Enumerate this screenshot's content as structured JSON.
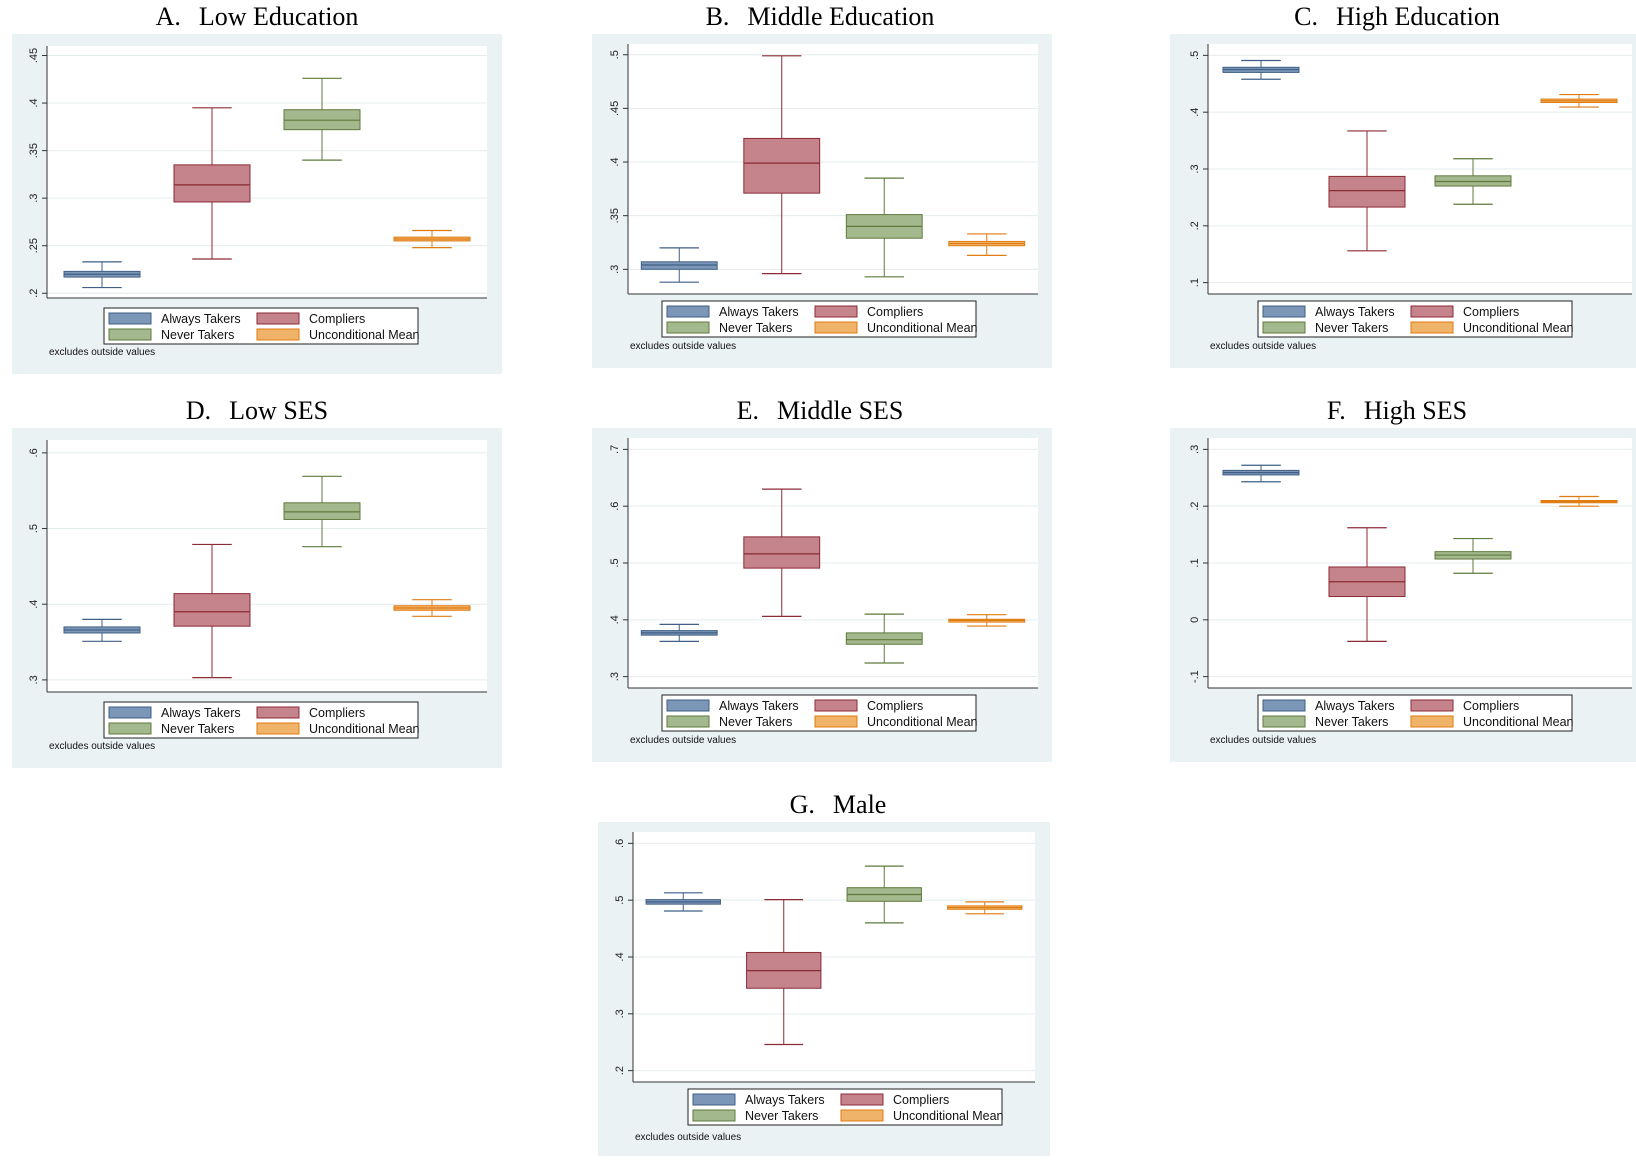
{
  "legend": {
    "items": [
      {
        "label": "Always Takers",
        "color": "#7b96b6",
        "stroke": "#3f5f86"
      },
      {
        "label": "Compliers",
        "color": "#c5838c",
        "stroke": "#8c2a35"
      },
      {
        "label": "Never Takers",
        "color": "#a3b88c",
        "stroke": "#5f7a3c"
      },
      {
        "label": "Unconditional Mean",
        "color": "#f0b36a",
        "stroke": "#e07b10"
      }
    ]
  },
  "note": "excludes outside values",
  "colors": {
    "panel_bg": "#eaf2f3",
    "plot_bg": "#ffffff",
    "grid": "#e4ecec"
  },
  "chart_data": [
    {
      "type": "box",
      "letter": "A.",
      "title": "Low Education",
      "ylim": [
        0.195,
        0.46
      ],
      "yticks": [
        0.2,
        0.25,
        0.3,
        0.35,
        0.4,
        0.45
      ],
      "yticklabels": [
        ".2",
        ".25",
        ".3",
        ".35",
        ".4",
        ".45"
      ],
      "categories": [
        "Always Takers",
        "Compliers",
        "Never Takers",
        "Unconditional Mean"
      ],
      "boxes": [
        {
          "whisker_low": 0.206,
          "q1": 0.217,
          "median": 0.22,
          "q3": 0.223,
          "whisker_high": 0.233
        },
        {
          "whisker_low": 0.236,
          "q1": 0.296,
          "median": 0.314,
          "q3": 0.335,
          "whisker_high": 0.395
        },
        {
          "whisker_low": 0.34,
          "q1": 0.372,
          "median": 0.382,
          "q3": 0.393,
          "whisker_high": 0.426
        },
        {
          "whisker_low": 0.248,
          "q1": 0.255,
          "median": 0.257,
          "q3": 0.259,
          "whisker_high": 0.266
        }
      ]
    },
    {
      "type": "box",
      "letter": "B.",
      "title": "Middle Education",
      "ylim": [
        0.277,
        0.51
      ],
      "yticks": [
        0.3,
        0.35,
        0.4,
        0.45,
        0.5
      ],
      "yticklabels": [
        ".3",
        ".35",
        ".4",
        ".45",
        ".5"
      ],
      "categories": [
        "Always Takers",
        "Compliers",
        "Never Takers",
        "Unconditional Mean"
      ],
      "boxes": [
        {
          "whisker_low": 0.288,
          "q1": 0.3,
          "median": 0.304,
          "q3": 0.307,
          "whisker_high": 0.32
        },
        {
          "whisker_low": 0.296,
          "q1": 0.371,
          "median": 0.399,
          "q3": 0.422,
          "whisker_high": 0.499
        },
        {
          "whisker_low": 0.293,
          "q1": 0.329,
          "median": 0.34,
          "q3": 0.351,
          "whisker_high": 0.385
        },
        {
          "whisker_low": 0.313,
          "q1": 0.322,
          "median": 0.324,
          "q3": 0.326,
          "whisker_high": 0.333
        }
      ]
    },
    {
      "type": "box",
      "letter": "C.",
      "title": "High Education",
      "ylim": [
        0.08,
        0.52
      ],
      "yticks": [
        0.1,
        0.2,
        0.3,
        0.4,
        0.5
      ],
      "yticklabels": [
        ".1",
        ".2",
        ".3",
        ".4",
        ".5"
      ],
      "categories": [
        "Always Takers",
        "Compliers",
        "Never Takers",
        "Unconditional Mean"
      ],
      "boxes": [
        {
          "whisker_low": 0.458,
          "q1": 0.47,
          "median": 0.475,
          "q3": 0.479,
          "whisker_high": 0.491
        },
        {
          "whisker_low": 0.156,
          "q1": 0.233,
          "median": 0.262,
          "q3": 0.287,
          "whisker_high": 0.367
        },
        {
          "whisker_low": 0.238,
          "q1": 0.27,
          "median": 0.278,
          "q3": 0.288,
          "whisker_high": 0.318
        },
        {
          "whisker_low": 0.409,
          "q1": 0.417,
          "median": 0.42,
          "q3": 0.423,
          "whisker_high": 0.431
        }
      ]
    },
    {
      "type": "box",
      "letter": "D.",
      "title": "Low SES",
      "ylim": [
        0.284,
        0.617
      ],
      "yticks": [
        0.3,
        0.4,
        0.5,
        0.6
      ],
      "yticklabels": [
        ".3",
        ".4",
        ".5",
        ".6"
      ],
      "categories": [
        "Always Takers",
        "Compliers",
        "Never Takers",
        "Unconditional Mean"
      ],
      "boxes": [
        {
          "whisker_low": 0.351,
          "q1": 0.362,
          "median": 0.366,
          "q3": 0.37,
          "whisker_high": 0.38
        },
        {
          "whisker_low": 0.303,
          "q1": 0.371,
          "median": 0.39,
          "q3": 0.414,
          "whisker_high": 0.479
        },
        {
          "whisker_low": 0.476,
          "q1": 0.512,
          "median": 0.522,
          "q3": 0.534,
          "whisker_high": 0.569
        },
        {
          "whisker_low": 0.384,
          "q1": 0.392,
          "median": 0.395,
          "q3": 0.398,
          "whisker_high": 0.406
        }
      ]
    },
    {
      "type": "box",
      "letter": "E.",
      "title": "Middle SES",
      "ylim": [
        0.28,
        0.72
      ],
      "yticks": [
        0.3,
        0.4,
        0.5,
        0.6,
        0.7
      ],
      "yticklabels": [
        ".3",
        ".4",
        ".5",
        ".6",
        ".7"
      ],
      "categories": [
        "Always Takers",
        "Compliers",
        "Never Takers",
        "Unconditional Mean"
      ],
      "boxes": [
        {
          "whisker_low": 0.362,
          "q1": 0.373,
          "median": 0.377,
          "q3": 0.381,
          "whisker_high": 0.392
        },
        {
          "whisker_low": 0.406,
          "q1": 0.491,
          "median": 0.516,
          "q3": 0.546,
          "whisker_high": 0.63
        },
        {
          "whisker_low": 0.324,
          "q1": 0.357,
          "median": 0.365,
          "q3": 0.377,
          "whisker_high": 0.41
        },
        {
          "whisker_low": 0.389,
          "q1": 0.396,
          "median": 0.399,
          "q3": 0.401,
          "whisker_high": 0.409
        }
      ]
    },
    {
      "type": "box",
      "letter": "F.",
      "title": "High SES",
      "ylim": [
        -0.12,
        0.32
      ],
      "yticks": [
        -0.1,
        0,
        0.1,
        0.2,
        0.3
      ],
      "yticklabels": [
        "-.1",
        "0",
        ".1",
        ".2",
        ".3"
      ],
      "categories": [
        "Always Takers",
        "Compliers",
        "Never Takers",
        "Unconditional Mean"
      ],
      "boxes": [
        {
          "whisker_low": 0.243,
          "q1": 0.255,
          "median": 0.259,
          "q3": 0.263,
          "whisker_high": 0.272
        },
        {
          "whisker_low": -0.038,
          "q1": 0.041,
          "median": 0.067,
          "q3": 0.093,
          "whisker_high": 0.162
        },
        {
          "whisker_low": 0.082,
          "q1": 0.107,
          "median": 0.114,
          "q3": 0.12,
          "whisker_high": 0.143
        },
        {
          "whisker_low": 0.2,
          "q1": 0.206,
          "median": 0.208,
          "q3": 0.21,
          "whisker_high": 0.217
        }
      ]
    },
    {
      "type": "box",
      "letter": "G.",
      "title": "Male",
      "ylim": [
        0.18,
        0.62
      ],
      "yticks": [
        0.2,
        0.3,
        0.4,
        0.5,
        0.6
      ],
      "yticklabels": [
        ".2",
        ".3",
        ".4",
        ".5",
        ".6"
      ],
      "categories": [
        "Always Takers",
        "Compliers",
        "Never Takers",
        "Unconditional Mean"
      ],
      "boxes": [
        {
          "whisker_low": 0.481,
          "q1": 0.493,
          "median": 0.497,
          "q3": 0.501,
          "whisker_high": 0.513
        },
        {
          "whisker_low": 0.246,
          "q1": 0.345,
          "median": 0.376,
          "q3": 0.408,
          "whisker_high": 0.501
        },
        {
          "whisker_low": 0.46,
          "q1": 0.498,
          "median": 0.51,
          "q3": 0.522,
          "whisker_high": 0.56
        },
        {
          "whisker_low": 0.476,
          "q1": 0.484,
          "median": 0.487,
          "q3": 0.49,
          "whisker_high": 0.497
        }
      ]
    }
  ]
}
